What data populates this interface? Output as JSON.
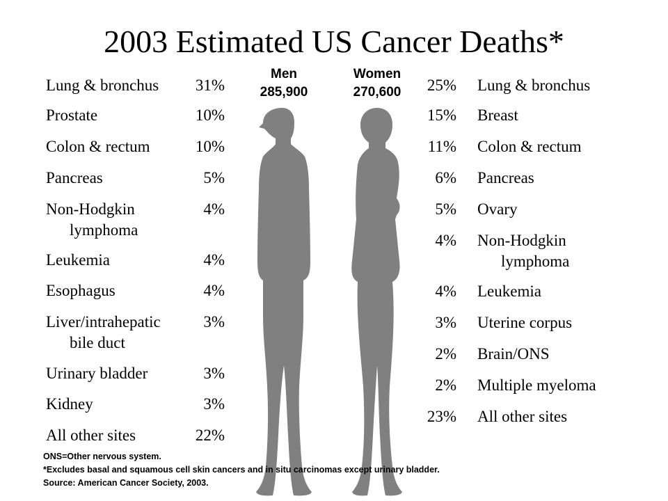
{
  "title": "2003 Estimated US Cancer Deaths*",
  "men": {
    "label": "Men",
    "total": "285,900",
    "sites": [
      {
        "name": "Lung & bronchus",
        "pct": "31%"
      },
      {
        "name": "Prostate",
        "pct": "10%"
      },
      {
        "name": "Colon & rectum",
        "pct": "10%"
      },
      {
        "name": "Pancreas",
        "pct": "5%"
      },
      {
        "name": "Non-Hodgkin",
        "cont": "lymphoma",
        "pct": "4%"
      },
      {
        "name": "Leukemia",
        "pct": "4%"
      },
      {
        "name": "Esophagus",
        "pct": "4%"
      },
      {
        "name": "Liver/intrahepatic",
        "cont": "bile duct",
        "pct": "3%"
      },
      {
        "name": "Urinary bladder",
        "pct": "3%"
      },
      {
        "name": "Kidney",
        "pct": "3%"
      },
      {
        "name": "All other sites",
        "pct": "22%"
      }
    ]
  },
  "women": {
    "label": "Women",
    "total": "270,600",
    "sites": [
      {
        "name": "Lung & bronchus",
        "pct": "25%"
      },
      {
        "name": "Breast",
        "pct": "15%"
      },
      {
        "name": "Colon & rectum",
        "pct": "11%"
      },
      {
        "name": "Pancreas",
        "pct": "6%"
      },
      {
        "name": "Ovary",
        "pct": "5%"
      },
      {
        "name": "Non-Hodgkin",
        "cont": "lymphoma",
        "pct": "4%"
      },
      {
        "name": "Leukemia",
        "pct": "4%"
      },
      {
        "name": "Uterine corpus",
        "pct": "3%"
      },
      {
        "name": "Brain/ONS",
        "pct": "2%"
      },
      {
        "name": "Multiple myeloma",
        "pct": "2%"
      },
      {
        "name": "All other sites",
        "pct": "23%"
      }
    ]
  },
  "figures": {
    "male_icon": "male-silhouette-icon",
    "female_icon": "female-silhouette-icon",
    "fill_color": "#808080"
  },
  "footnotes": {
    "abbreviation": "ONS=Other nervous system.",
    "exclusion": "*Excludes basal and squamous cell skin cancers and in situ carcinomas except urinary bladder.",
    "source": "Source: American Cancer Society, 2003."
  }
}
